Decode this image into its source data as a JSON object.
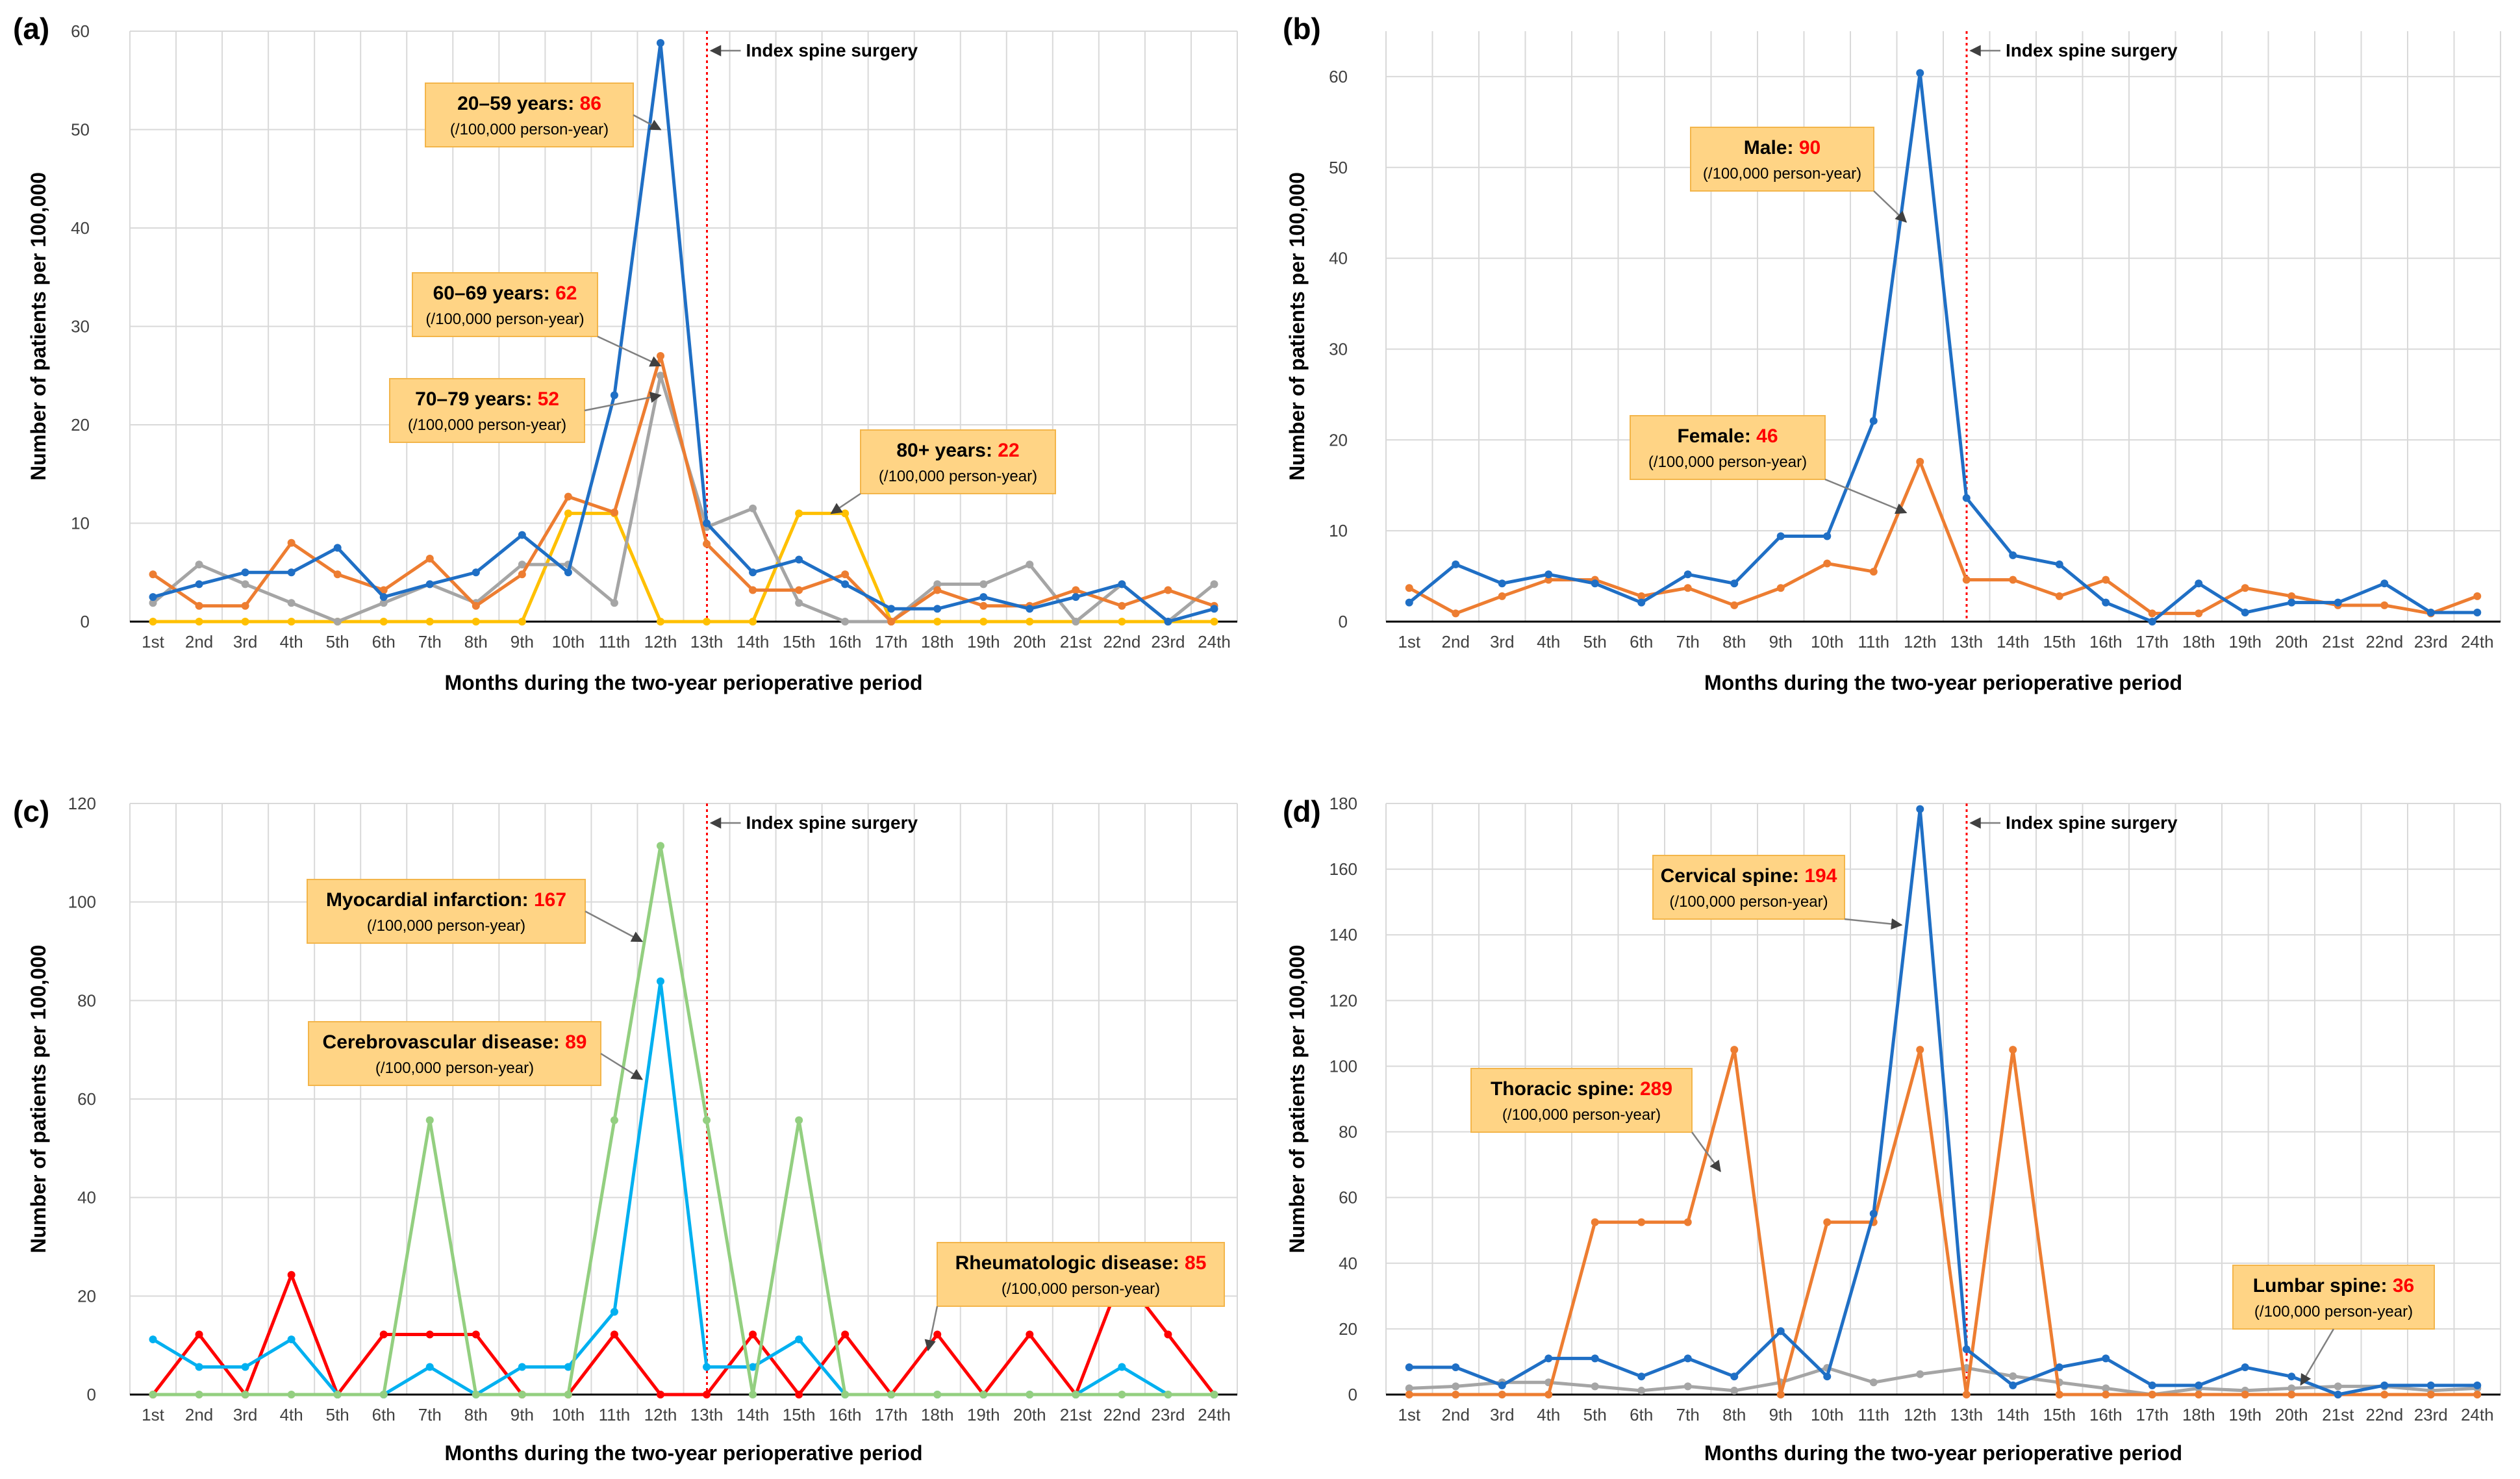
{
  "figure": {
    "x_axis_title": "Months during the two-year perioperative period",
    "y_axis_title": "Number of patients per 100,000",
    "surgery_label": "Index spine surgery",
    "unit_text": "(/100,000 person-year)",
    "month_labels": [
      "1st",
      "2nd",
      "3rd",
      "4th",
      "5th",
      "6th",
      "7th",
      "8th",
      "9th",
      "10th",
      "11th",
      "12th",
      "13th",
      "14th",
      "15th",
      "16th",
      "17th",
      "18th",
      "19th",
      "20th",
      "21st",
      "22nd",
      "23rd",
      "24th"
    ]
  },
  "chart_data": [
    {
      "type": "line",
      "panel": "(a)",
      "xlabel": "Months during the two-year perioperative period",
      "ylabel": "Number of patients per 100,000",
      "ylim": [
        0,
        60
      ],
      "yticks": [
        0,
        10,
        20,
        30,
        40,
        50,
        60
      ],
      "surgery_after_month": 12,
      "series": [
        {
          "name": "20–59 years",
          "color": "#1f6fc5",
          "values": [
            2.5,
            3.8,
            5.0,
            5.0,
            7.5,
            2.5,
            3.8,
            5.0,
            8.8,
            5.0,
            23.0,
            58.8,
            10.0,
            5.0,
            6.3,
            3.8,
            1.3,
            1.3,
            2.5,
            1.3,
            2.5,
            3.8,
            0,
            1.3
          ]
        },
        {
          "name": "60–69 years",
          "color": "#ed7d31",
          "values": [
            4.8,
            1.6,
            1.6,
            8.0,
            4.8,
            3.2,
            6.4,
            1.6,
            4.8,
            12.7,
            11.1,
            27.0,
            7.9,
            3.2,
            3.2,
            4.8,
            0,
            3.2,
            1.6,
            1.6,
            3.2,
            1.6,
            3.2,
            1.6
          ]
        },
        {
          "name": "70–79 years",
          "color": "#a5a5a5",
          "values": [
            1.9,
            5.8,
            3.8,
            1.9,
            0,
            1.9,
            3.8,
            1.9,
            5.8,
            5.8,
            1.9,
            25.0,
            9.6,
            11.5,
            1.9,
            0,
            0,
            3.8,
            3.8,
            5.8,
            0,
            3.8,
            0,
            3.8
          ]
        },
        {
          "name": "80+ years",
          "color": "#ffc000",
          "values": [
            0,
            0,
            0,
            0,
            0,
            0,
            0,
            0,
            0,
            11.0,
            11.0,
            0,
            0,
            0,
            11.0,
            11.0,
            0,
            0,
            0,
            0,
            0,
            0,
            0,
            0
          ]
        }
      ],
      "annotations": [
        {
          "series": "20–59 years",
          "label": "20–59 years: ",
          "value": "86",
          "sub": "(/100,000 person-year)"
        },
        {
          "series": "60–69 years",
          "label": "60–69 years: ",
          "value": "62",
          "sub": "(/100,000 person-year)"
        },
        {
          "series": "70–79 years",
          "label": "70–79 years: ",
          "value": "52",
          "sub": "(/100,000 person-year)"
        },
        {
          "series": "80+ years",
          "label": "80+ years: ",
          "value": "22",
          "sub": "(/100,000 person-year)"
        }
      ]
    },
    {
      "type": "line",
      "panel": "(b)",
      "xlabel": "Months during the two-year perioperative period",
      "ylabel": "Number of patients per 100,000",
      "ylim": [
        0,
        65
      ],
      "yticks": [
        0,
        10,
        20,
        30,
        40,
        50,
        60
      ],
      "surgery_after_month": 12,
      "series": [
        {
          "name": "Male",
          "color": "#1f6fc5",
          "values": [
            2.1,
            6.3,
            4.2,
            5.2,
            4.2,
            2.1,
            5.2,
            4.2,
            9.4,
            9.4,
            22.1,
            60.4,
            13.6,
            7.3,
            6.3,
            2.1,
            0,
            4.2,
            1.0,
            2.1,
            2.1,
            4.2,
            1.0,
            1.0
          ]
        },
        {
          "name": "Female",
          "color": "#ed7d31",
          "values": [
            3.7,
            0.9,
            2.8,
            4.6,
            4.6,
            2.8,
            3.7,
            1.8,
            3.7,
            6.4,
            5.5,
            17.6,
            4.6,
            4.6,
            2.8,
            4.6,
            0.9,
            0.9,
            3.7,
            2.8,
            1.8,
            1.8,
            0.9,
            2.8
          ]
        }
      ],
      "annotations": [
        {
          "series": "Male",
          "label": "Male: ",
          "value": "90",
          "sub": "(/100,000 person-year)"
        },
        {
          "series": "Female",
          "label": "Female: ",
          "value": "46",
          "sub": "(/100,000 person-year)"
        }
      ]
    },
    {
      "type": "line",
      "panel": "(c)",
      "xlabel": "Months during the two-year perioperative period",
      "ylabel": "Number of patients per 100,000",
      "ylim": [
        0,
        120
      ],
      "yticks": [
        0,
        20,
        40,
        60,
        80,
        100,
        120
      ],
      "surgery_after_month": 12,
      "series": [
        {
          "name": "Myocardial infarction",
          "color": "#93cf80",
          "values": [
            0,
            0,
            0,
            0,
            0,
            0,
            55.7,
            0,
            0,
            0,
            55.7,
            111.4,
            55.7,
            0,
            55.7,
            0,
            0,
            0,
            0,
            0,
            0,
            0,
            0,
            0
          ]
        },
        {
          "name": "Cerebrovascular disease",
          "color": "#00b0f0",
          "values": [
            11.2,
            5.6,
            5.6,
            11.2,
            0,
            0,
            5.6,
            0,
            5.6,
            5.6,
            16.8,
            83.9,
            5.6,
            5.6,
            11.2,
            0,
            0,
            0,
            0,
            0,
            0,
            5.6,
            0,
            0
          ]
        },
        {
          "name": "Rheumatologic disease",
          "color": "#ff0000",
          "values": [
            0,
            12.2,
            0,
            24.3,
            0,
            12.2,
            12.2,
            12.2,
            0,
            0,
            12.2,
            0,
            0,
            12.2,
            0,
            12.2,
            0,
            12.2,
            0,
            12.2,
            0,
            24.3,
            12.2,
            0
          ]
        }
      ],
      "annotations": [
        {
          "series": "Myocardial infarction",
          "label": "Myocardial infarction: ",
          "value": "167",
          "sub": "(/100,000 person-year)"
        },
        {
          "series": "Cerebrovascular disease",
          "label": "Cerebrovascular disease: ",
          "value": "89",
          "sub": "(/100,000 person-year)"
        },
        {
          "series": "Rheumatologic disease",
          "label": "Rheumatologic disease: ",
          "value": "85",
          "sub": "(/100,000 person-year)"
        }
      ]
    },
    {
      "type": "line",
      "panel": "(d)",
      "xlabel": "Months during the two-year perioperative period",
      "ylabel": "Number of patients per 100,000",
      "ylim": [
        0,
        180
      ],
      "yticks": [
        0,
        20,
        40,
        60,
        80,
        100,
        120,
        140,
        160,
        180
      ],
      "surgery_after_month": 12,
      "series": [
        {
          "name": "Cervical spine",
          "color": "#1f6fc5",
          "values": [
            8.3,
            8.3,
            2.8,
            11.0,
            11.0,
            5.5,
            11.0,
            5.5,
            19.3,
            5.5,
            55.1,
            178.3,
            13.8,
            2.8,
            8.3,
            11.0,
            2.8,
            2.8,
            8.3,
            5.5,
            0,
            2.8,
            2.8,
            2.8
          ]
        },
        {
          "name": "Thoracic spine",
          "color": "#ed7d31",
          "values": [
            0,
            0,
            0,
            0,
            52.5,
            52.5,
            52.5,
            105.0,
            0,
            52.5,
            52.5,
            105.0,
            0,
            105.0,
            0,
            0,
            0,
            0,
            0,
            0,
            0,
            0,
            0,
            0
          ]
        },
        {
          "name": "Lumbar spine",
          "color": "#a5a5a5",
          "values": [
            1.9,
            2.5,
            3.7,
            3.7,
            2.5,
            1.2,
            2.5,
            1.2,
            3.7,
            8.1,
            3.7,
            6.2,
            8.1,
            5.6,
            3.7,
            1.9,
            0,
            1.9,
            1.2,
            1.9,
            2.5,
            2.5,
            1.2,
            1.9
          ]
        }
      ],
      "annotations": [
        {
          "series": "Cervical spine",
          "label": "Cervical spine: ",
          "value": "194",
          "sub": "(/100,000 person-year)"
        },
        {
          "series": "Thoracic spine",
          "label": "Thoracic spine: ",
          "value": "289",
          "sub": "(/100,000 person-year)"
        },
        {
          "series": "Lumbar spine",
          "label": "Lumbar spine: ",
          "value": "36",
          "sub": "(/100,000 person-year)"
        }
      ]
    }
  ]
}
